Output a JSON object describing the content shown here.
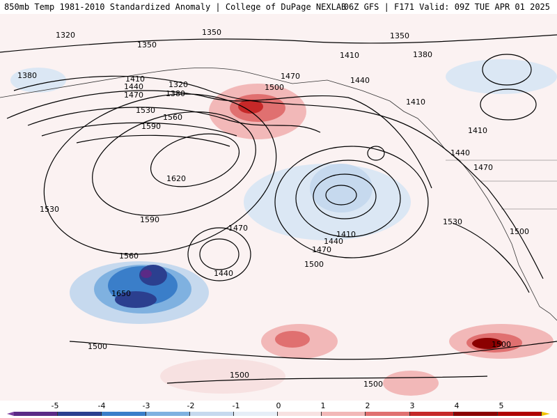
{
  "header": {
    "left_title": "850mb Temp 1981-2010 Standardized Anomaly | College of DuPage NEXLAB",
    "right_title": "06Z GFS | F171 Valid: 09Z TUE APR 01 2025"
  },
  "map": {
    "contour_labels": [
      "1320",
      "1350",
      "1350",
      "1350",
      "1380",
      "1380",
      "1410",
      "1410",
      "1410",
      "1410",
      "1410",
      "1440",
      "1440",
      "1440",
      "1440",
      "1440",
      "1470",
      "1470",
      "1470",
      "1470",
      "1470",
      "1500",
      "1500",
      "1500",
      "1500",
      "1500",
      "1500",
      "1500",
      "1530",
      "1530",
      "1530",
      "1560",
      "1560",
      "1590",
      "1590",
      "1620",
      "1650",
      "1380",
      "1320"
    ]
  },
  "colorbar": {
    "ticks": [
      "-5",
      "-4",
      "-3",
      "-2",
      "-1",
      "0",
      "1",
      "2",
      "3",
      "4",
      "5"
    ],
    "colors": [
      "#5b2a86",
      "#2b3f8f",
      "#3a7ec9",
      "#7fb1e0",
      "#c6d9ee",
      "#e6eef7",
      "#f7e1e1",
      "#f2b8b8",
      "#e07070",
      "#c62828",
      "#8b0000",
      "#b00000"
    ],
    "left_end_color": "#7b3fa0",
    "right_end_color": "#f2c200"
  }
}
